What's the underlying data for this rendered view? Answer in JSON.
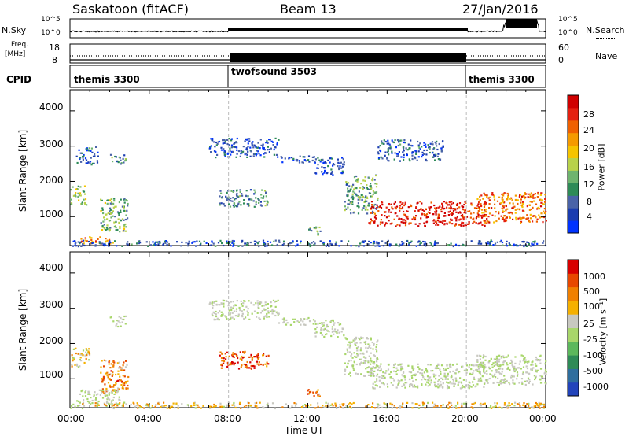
{
  "header": {
    "station": "Saskatoon (fitACF)",
    "beam": "Beam 13",
    "date": "27/Jan/2016"
  },
  "top_panels": {
    "noise_left_label": "N.Sky",
    "noise_right_label": "N.Search",
    "noise_left_ticks": [
      "10^5",
      "10^0"
    ],
    "noise_right_ticks": [
      "10^5",
      "10^0"
    ],
    "freq_label_1": "Freq.",
    "freq_label_2": "[MHz]",
    "freq_ticks": [
      "18",
      "8"
    ],
    "nave_label": "Nave",
    "nave_ticks": [
      "60",
      "0"
    ],
    "cpid_label": "CPID",
    "cpid_segments": [
      {
        "name": "themis 3300",
        "start": 0,
        "end": 8
      },
      {
        "name": "twofsound 3503",
        "start": 8,
        "end": 20
      },
      {
        "name": "themis 3300",
        "start": 20,
        "end": 24
      }
    ]
  },
  "chart_data": [
    {
      "type": "heatmap",
      "title": "",
      "xlabel": "",
      "ylabel": "Slant Range [km]",
      "xlim": [
        0,
        24
      ],
      "ylim": [
        180,
        4600
      ],
      "yticks": [
        "4000",
        "3000",
        "2000",
        "1000"
      ],
      "colorbar": {
        "label": "Power [dB]",
        "ticks": [
          "28",
          "24",
          "20",
          "16",
          "12",
          "8",
          "4"
        ],
        "colors": [
          "#0033ff",
          "#1a3cb0",
          "#4a63a8",
          "#2e8b57",
          "#6eb46e",
          "#b8d24a",
          "#f5c400",
          "#f59a00",
          "#f06000",
          "#e52010",
          "#d00000"
        ]
      },
      "bands": [
        {
          "t0": 0.0,
          "t1": 0.8,
          "r0": 1350,
          "r1": 1900,
          "level": 0.45
        },
        {
          "t0": 1.5,
          "t1": 2.9,
          "r0": 600,
          "r1": 1550,
          "level": 0.4
        },
        {
          "t0": 0.5,
          "t1": 2.2,
          "r0": 250,
          "r1": 450,
          "level": 0.7
        },
        {
          "t0": 0.3,
          "t1": 1.4,
          "r0": 2500,
          "r1": 3000,
          "level": 0.2
        },
        {
          "t0": 2.0,
          "t1": 2.8,
          "r0": 2500,
          "r1": 2800,
          "level": 0.3
        },
        {
          "t0": 7.0,
          "t1": 10.5,
          "r0": 2700,
          "r1": 3250,
          "level": 0.15
        },
        {
          "t0": 10.5,
          "t1": 12.3,
          "r0": 2550,
          "r1": 2750,
          "level": 0.15
        },
        {
          "t0": 12.3,
          "t1": 13.8,
          "r0": 2200,
          "r1": 2700,
          "level": 0.15
        },
        {
          "t0": 13.8,
          "t1": 15.5,
          "r0": 1100,
          "r1": 2200,
          "level": 0.35
        },
        {
          "t0": 15.0,
          "t1": 21.0,
          "r0": 750,
          "r1": 1450,
          "level": 0.9
        },
        {
          "t0": 20.5,
          "t1": 24.0,
          "r0": 850,
          "r1": 1700,
          "level": 0.75
        },
        {
          "t0": 7.5,
          "t1": 10.0,
          "r0": 1300,
          "r1": 1800,
          "level": 0.3
        },
        {
          "t0": 11.8,
          "t1": 12.6,
          "r0": 500,
          "r1": 750,
          "level": 0.35
        },
        {
          "t0": 0.0,
          "t1": 24.0,
          "r0": 180,
          "r1": 350,
          "level": 0.2
        },
        {
          "t0": 15.5,
          "t1": 18.8,
          "r0": 2600,
          "r1": 3200,
          "level": 0.2
        }
      ]
    },
    {
      "type": "heatmap",
      "title": "",
      "xlabel": "Time UT",
      "ylabel": "Slant Range [km]",
      "xlim": [
        0,
        24
      ],
      "ylim": [
        180,
        4600
      ],
      "yticks": [
        "4000",
        "3000",
        "2000",
        "1000"
      ],
      "xticks": [
        "00:00",
        "04:00",
        "08:00",
        "12:00",
        "16:00",
        "20:00",
        "00:00"
      ],
      "colorbar": {
        "label": "Velocity [m s^-1]",
        "ticks": [
          "1000",
          "500",
          "100",
          "25",
          "-25",
          "-100",
          "-500",
          "-1000"
        ],
        "colors": [
          "#2244bb",
          "#2e6e9e",
          "#2e8b57",
          "#5cb85c",
          "#a8d66a",
          "#c8c8c0",
          "#f5b000",
          "#f08000",
          "#e84800",
          "#d80000"
        ]
      },
      "bands": [
        {
          "t0": 0.0,
          "t1": 1.0,
          "r0": 1350,
          "r1": 1900,
          "level": 0.6
        },
        {
          "t0": 1.5,
          "t1": 2.9,
          "r0": 600,
          "r1": 1550,
          "level": 0.75
        },
        {
          "t0": 0.3,
          "t1": 2.5,
          "r0": 250,
          "r1": 700,
          "level": 0.5
        },
        {
          "t0": 2.0,
          "t1": 2.8,
          "r0": 2500,
          "r1": 2800,
          "level": 0.5
        },
        {
          "t0": 7.0,
          "t1": 10.5,
          "r0": 2700,
          "r1": 3250,
          "level": 0.5
        },
        {
          "t0": 10.5,
          "t1": 12.3,
          "r0": 2550,
          "r1": 2750,
          "level": 0.5
        },
        {
          "t0": 12.3,
          "t1": 13.8,
          "r0": 2200,
          "r1": 2700,
          "level": 0.5
        },
        {
          "t0": 13.8,
          "t1": 15.5,
          "r0": 1100,
          "r1": 2200,
          "level": 0.5
        },
        {
          "t0": 15.0,
          "t1": 21.0,
          "r0": 750,
          "r1": 1450,
          "level": 0.5
        },
        {
          "t0": 20.5,
          "t1": 24.0,
          "r0": 850,
          "r1": 1700,
          "level": 0.5
        },
        {
          "t0": 7.5,
          "t1": 10.0,
          "r0": 1300,
          "r1": 1800,
          "level": 0.85
        },
        {
          "t0": 11.8,
          "t1": 12.6,
          "r0": 500,
          "r1": 750,
          "level": 0.75
        },
        {
          "t0": 0.0,
          "t1": 24.0,
          "r0": 180,
          "r1": 350,
          "level": 0.62
        }
      ]
    }
  ]
}
